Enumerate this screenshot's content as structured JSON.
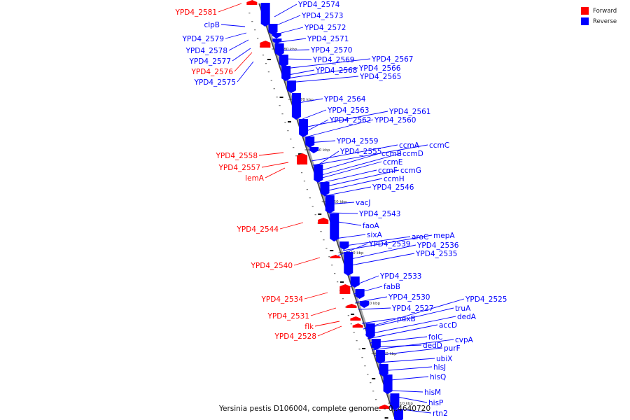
{
  "legend": {
    "forward": {
      "label": "Forward",
      "color": "#ff0000"
    },
    "reverse": {
      "label": "Reverse",
      "color": "#0000ff"
    }
  },
  "caption": "Yersinia pestis D106004, complete genome. - 0..4640720",
  "axis": {
    "ticks": [
      {
        "label": "3280 kbp",
        "pos": 3280
      },
      {
        "label": "3270 kbp",
        "pos": 3270
      },
      {
        "label": "3260 kbp",
        "pos": 3260
      },
      {
        "label": "3250 kbp",
        "pos": 3250
      },
      {
        "label": "3240 kbp",
        "pos": 3240
      },
      {
        "label": "3230 kbp",
        "pos": 3230
      },
      {
        "label": "3220 kbp",
        "pos": 3220
      },
      {
        "label": "3210 kbp",
        "pos": 3210
      }
    ]
  },
  "forward_labels": [
    "YPD4_2581",
    "clpB",
    "YPD4_2579",
    "YPD4_2578",
    "YPD4_2577",
    "YPD4_2576",
    "YPD4_2575",
    "YPD4_2558",
    "YPD4_2557",
    "lemA",
    "YPD4_2544",
    "YPD4_2540",
    "YPD4_2534",
    "YPD4_2531",
    "flk",
    "YPD4_2528"
  ],
  "forward_label_strands": [
    "forward",
    "reverse",
    "reverse",
    "reverse",
    "reverse",
    "forward",
    "reverse",
    "forward",
    "forward",
    "forward",
    "forward",
    "forward",
    "forward",
    "forward",
    "forward",
    "forward"
  ],
  "reverse_labels": [
    "YPD4_2574",
    "YPD4_2573",
    "YPD4_2572",
    "YPD4_2571",
    "YPD4_2570",
    "YPD4_2569",
    "YPD4_2567",
    "YPD4_2568",
    "YPD4_2566",
    "YPD4_2565",
    "YPD4_2564",
    "YPD4_2563",
    "YPD4_2561",
    "YPD4_2562",
    "YPD4_2560",
    "YPD4_2559",
    "ccmA",
    "ccmC",
    "YPD4_2555",
    "ccmB",
    "ccmD",
    "ccmE",
    "ccmF",
    "ccmG",
    "ccmH",
    "YPD4_2546",
    "vacJ",
    "YPD4_2543",
    "faoA",
    "sixA",
    "aroC",
    "mepA",
    "YPD4_2539",
    "YPD4_2536",
    "YPD4_2535",
    "YPD4_2533",
    "fabB",
    "YPD4_2530",
    "YPD4_2525",
    "YPD4_2527",
    "truA",
    "pdxB",
    "dedA",
    "accD",
    "folC",
    "cvpA",
    "dedD",
    "purF",
    "ubiX",
    "hisJ",
    "hisQ",
    "hisM",
    "hisP",
    "rtn2"
  ]
}
